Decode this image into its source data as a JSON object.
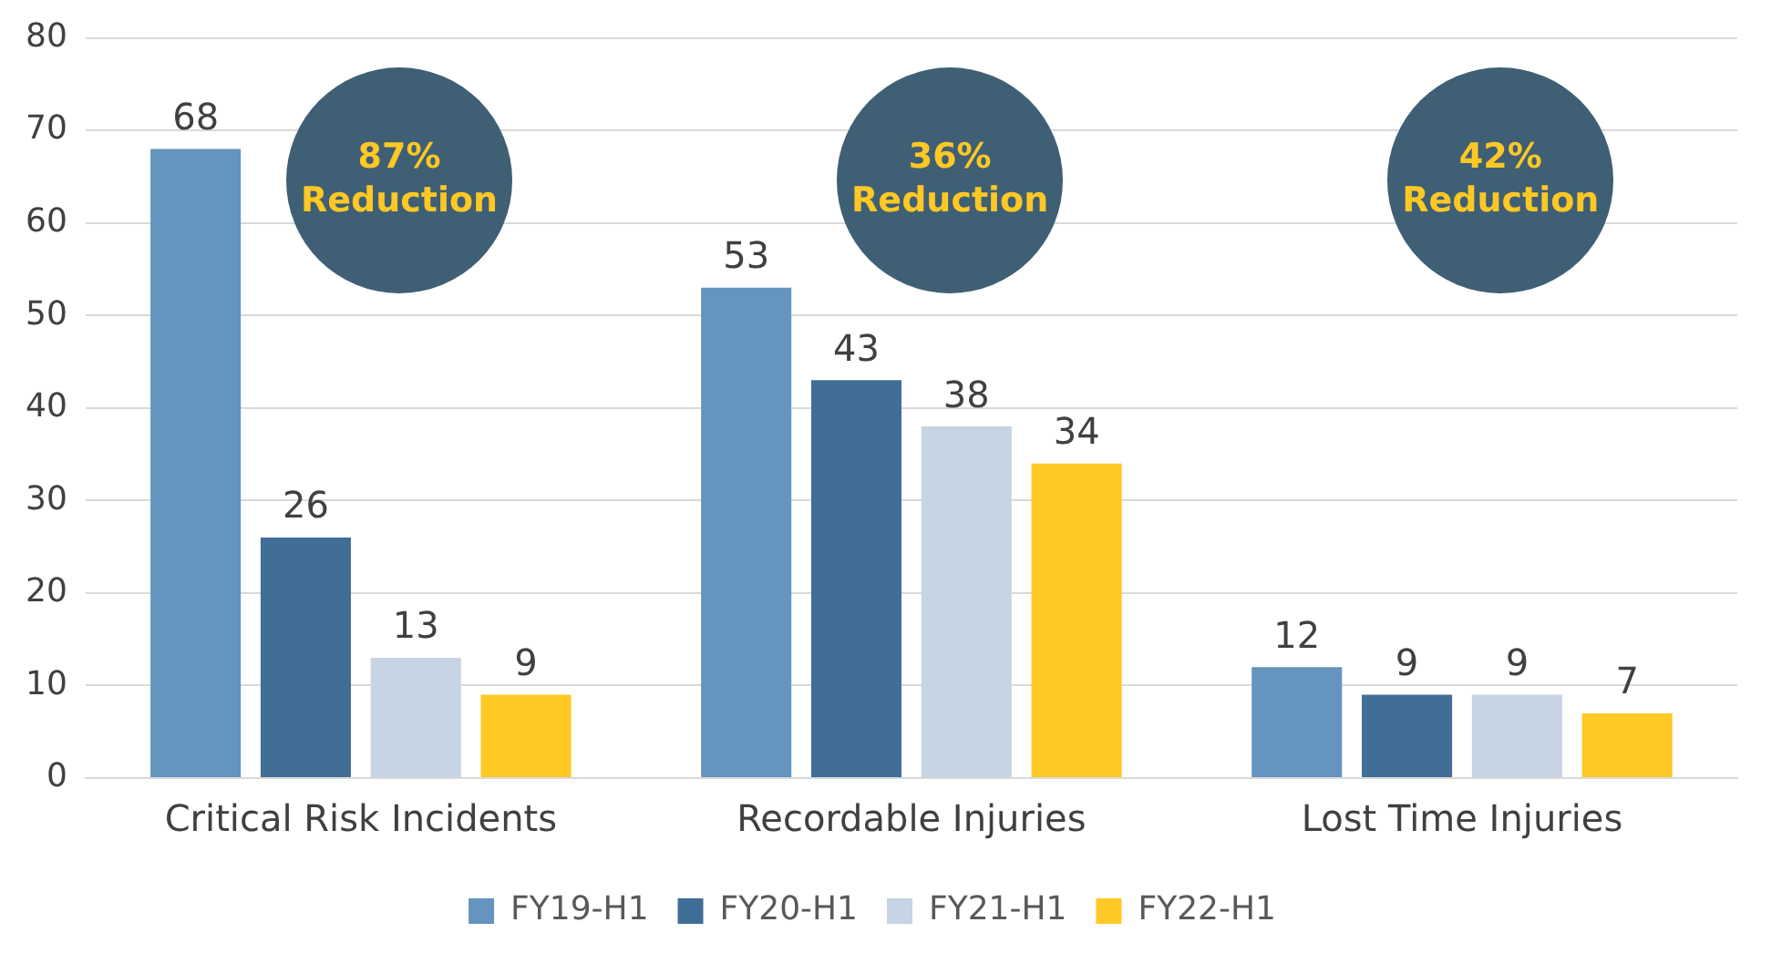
{
  "chart_data": {
    "type": "bar",
    "categories": [
      "Critical Risk Incidents",
      "Recordable Injuries",
      "Lost Time Injuries"
    ],
    "series": [
      {
        "name": "FY19-H1",
        "color": "#6594be",
        "values": [
          68,
          53,
          12
        ]
      },
      {
        "name": "FY20-H1",
        "color": "#416e96",
        "values": [
          26,
          43,
          9
        ]
      },
      {
        "name": "FY21-H1",
        "color": "#c6d4e4",
        "values": [
          13,
          38,
          9
        ]
      },
      {
        "name": "FY22-H1",
        "color": "#ffc824",
        "values": [
          9,
          34,
          7
        ]
      }
    ],
    "ylim": [
      0,
      80
    ],
    "yticks": [
      0,
      10,
      20,
      30,
      40,
      50,
      60,
      70,
      80
    ],
    "grid": "y",
    "legend": "bottom",
    "data_labels": true,
    "annotations": [
      "87%\nReduction",
      "36%\nReduction",
      "42%\nReduction"
    ]
  }
}
